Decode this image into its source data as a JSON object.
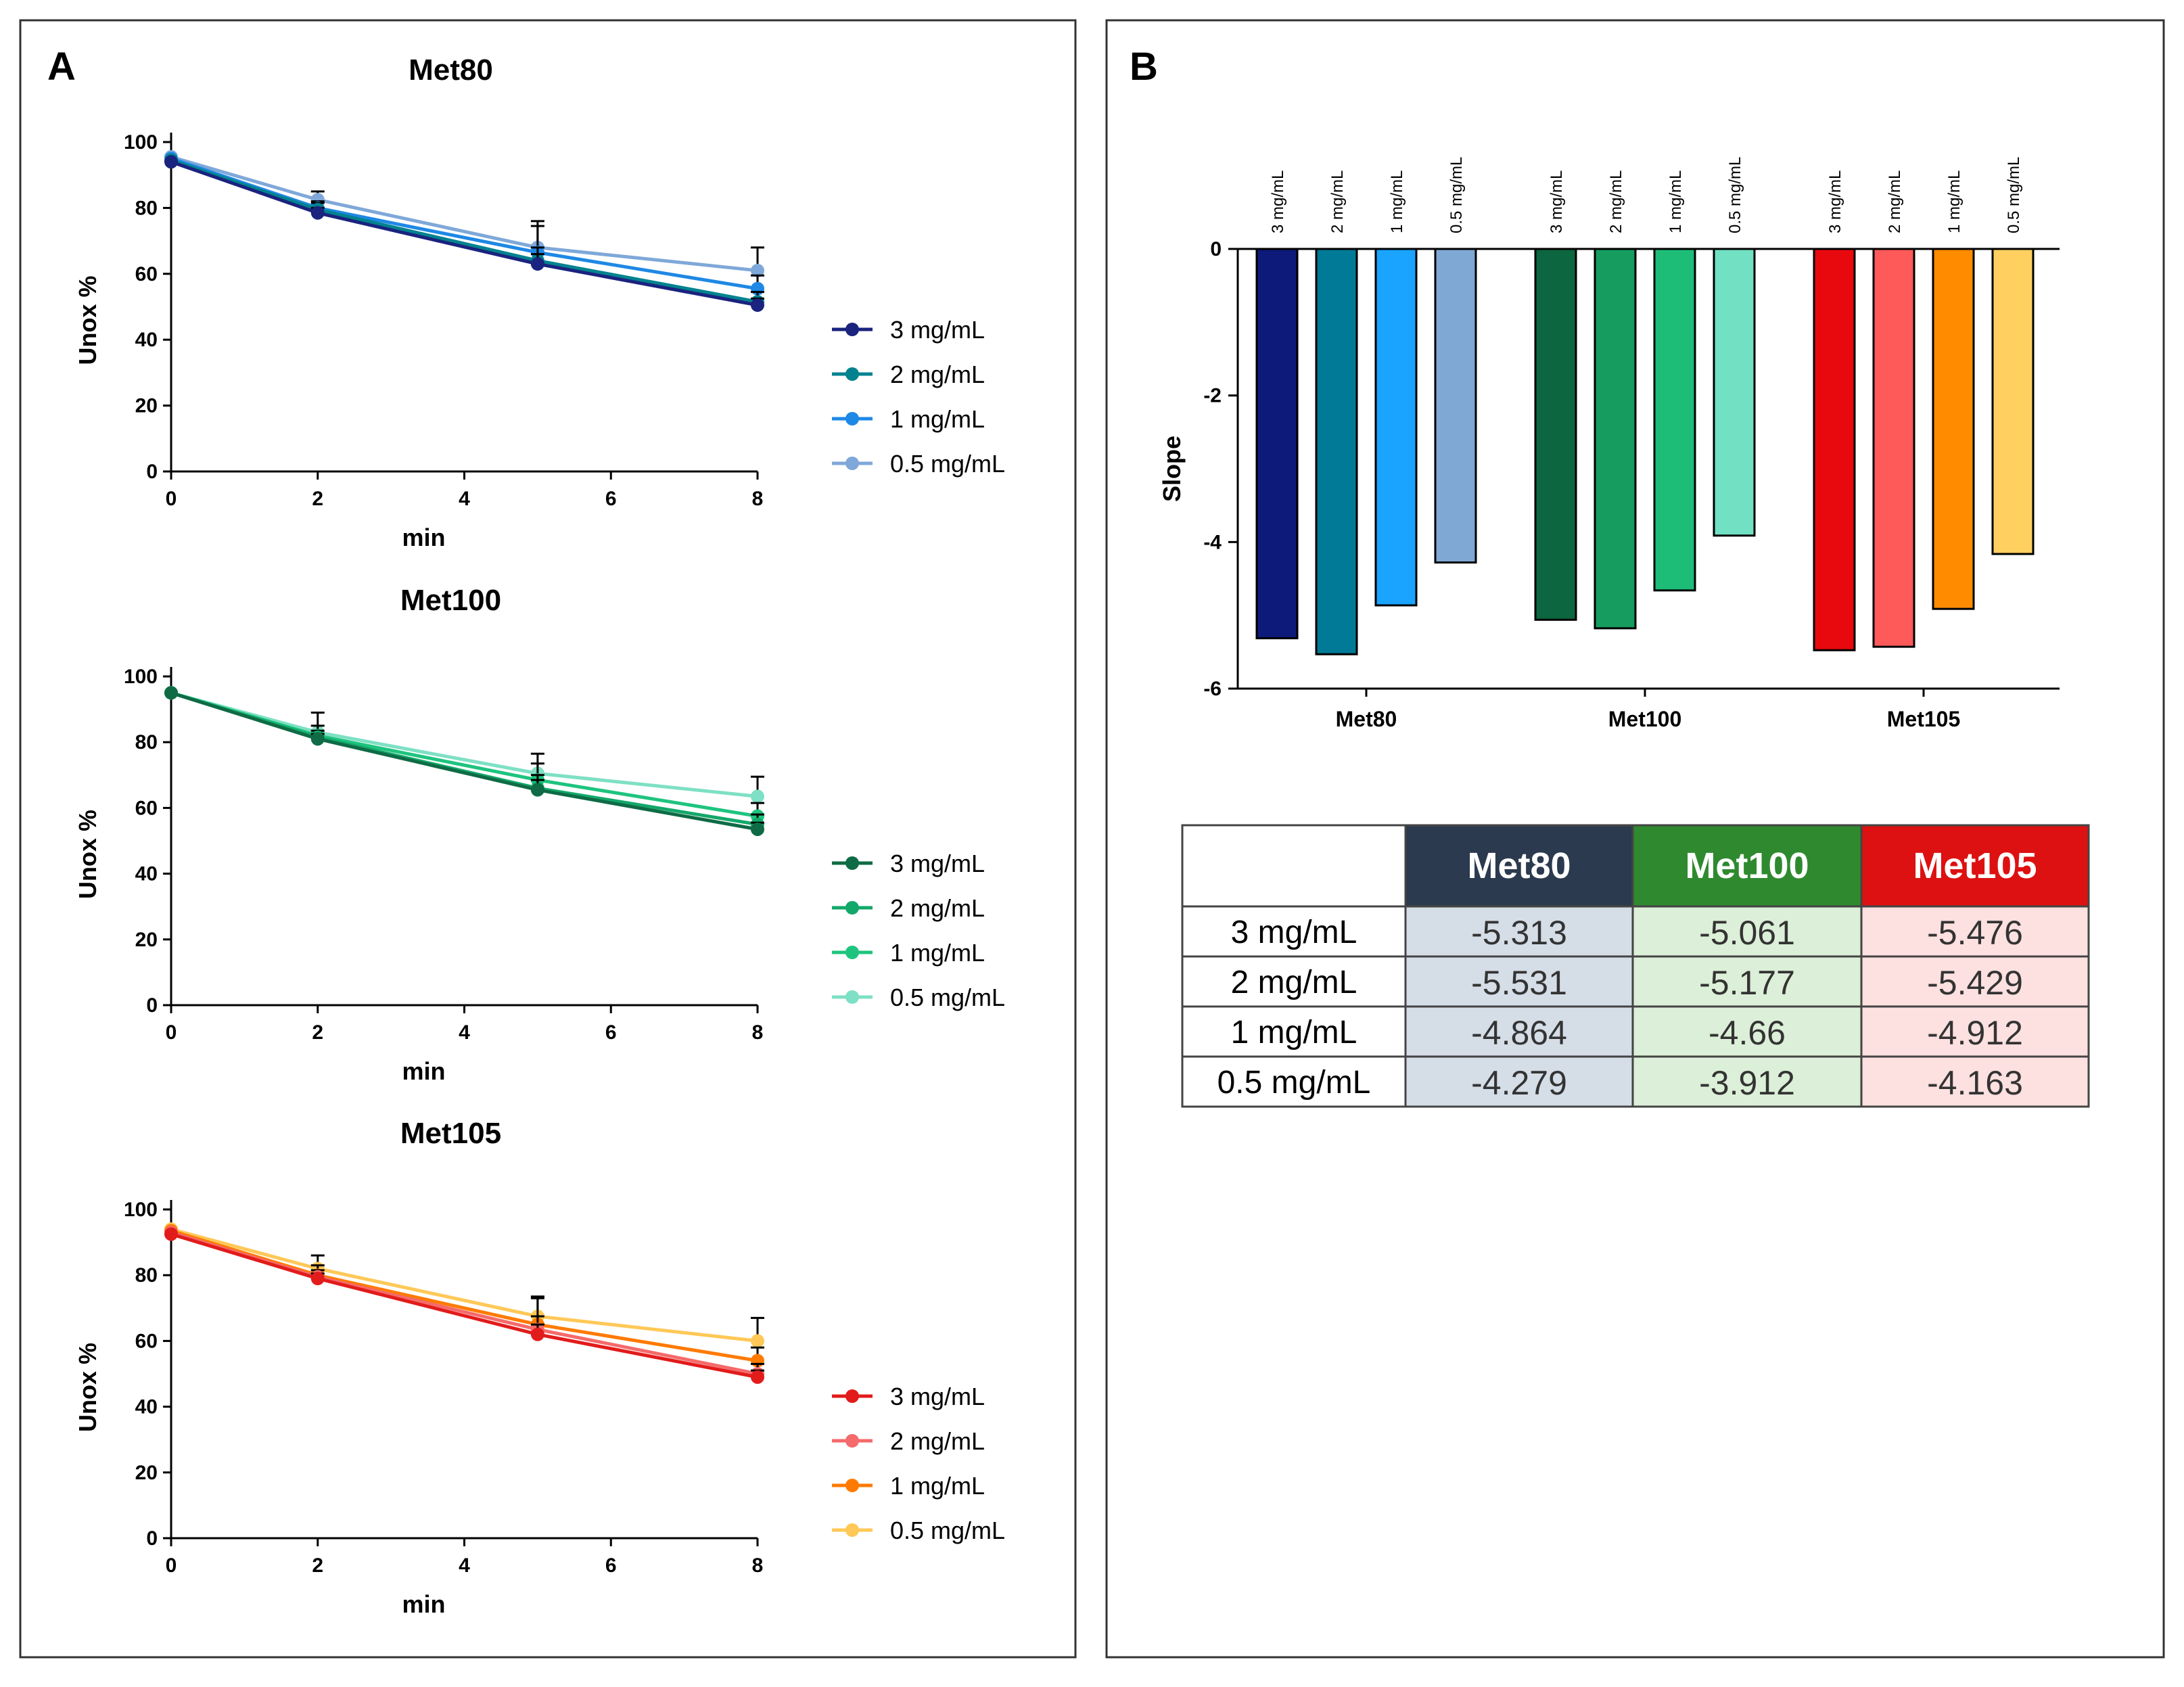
{
  "panel_a": {
    "letter": "A"
  },
  "panel_b": {
    "letter": "B"
  },
  "chart_data": [
    {
      "type": "line",
      "title": "Met80",
      "xlabel": "min",
      "ylabel": "Unox %",
      "xlim": [
        0,
        8
      ],
      "ylim": [
        0,
        100
      ],
      "xticks": [
        0,
        2,
        4,
        6,
        8
      ],
      "yticks": [
        0,
        20,
        40,
        60,
        80,
        100
      ],
      "x": [
        0,
        2,
        5,
        8
      ],
      "series": [
        {
          "name": "3 mg/mL",
          "color": "#1a237e",
          "values": [
            94,
            78.5,
            63,
            50.5
          ],
          "err": [
            0,
            1.5,
            3,
            2
          ]
        },
        {
          "name": "2 mg/mL",
          "color": "#00838f",
          "values": [
            94.5,
            79.5,
            64,
            51.5
          ],
          "err": [
            0,
            2,
            4,
            3
          ]
        },
        {
          "name": "1 mg/mL",
          "color": "#1e88e5",
          "values": [
            95,
            80,
            66.5,
            55.5
          ],
          "err": [
            0,
            2,
            8,
            4
          ]
        },
        {
          "name": "0.5 mg/mL",
          "color": "#7fa8d9",
          "values": [
            95.5,
            82.5,
            68,
            61
          ],
          "err": [
            0,
            2.5,
            8,
            7
          ]
        }
      ]
    },
    {
      "type": "line",
      "title": "Met100",
      "xlabel": "min",
      "ylabel": "Unox %",
      "xlim": [
        0,
        8
      ],
      "ylim": [
        0,
        100
      ],
      "xticks": [
        0,
        2,
        4,
        6,
        8
      ],
      "yticks": [
        0,
        20,
        40,
        60,
        80,
        100
      ],
      "x": [
        0,
        2,
        5,
        8
      ],
      "series": [
        {
          "name": "3 mg/mL",
          "color": "#0f6b45",
          "values": [
            95,
            81,
            65.5,
            53.5
          ],
          "err": [
            0,
            1.5,
            3,
            2
          ]
        },
        {
          "name": "2 mg/mL",
          "color": "#12a86a",
          "values": [
            95,
            81.5,
            66,
            55
          ],
          "err": [
            0,
            2,
            4,
            3
          ]
        },
        {
          "name": "1 mg/mL",
          "color": "#1ec47e",
          "values": [
            95,
            82,
            68.5,
            57.5
          ],
          "err": [
            0,
            3,
            5,
            4
          ]
        },
        {
          "name": "0.5 mg/mL",
          "color": "#7ee0c4",
          "values": [
            95,
            83,
            70.5,
            63.5
          ],
          "err": [
            0,
            6,
            6,
            6
          ]
        }
      ]
    },
    {
      "type": "line",
      "title": "Met105",
      "xlabel": "min",
      "ylabel": "Unox %",
      "xlim": [
        0,
        8
      ],
      "ylim": [
        0,
        100
      ],
      "xticks": [
        0,
        2,
        4,
        6,
        8
      ],
      "yticks": [
        0,
        20,
        40,
        60,
        80,
        100
      ],
      "x": [
        0,
        2,
        5,
        8
      ],
      "series": [
        {
          "name": "3 mg/mL",
          "color": "#e21b1b",
          "values": [
            92.5,
            79,
            62,
            49
          ],
          "err": [
            0,
            1.5,
            3,
            2
          ]
        },
        {
          "name": "2 mg/mL",
          "color": "#f56a6a",
          "values": [
            93,
            79.5,
            63.5,
            50
          ],
          "err": [
            0,
            2,
            4,
            3
          ]
        },
        {
          "name": "1 mg/mL",
          "color": "#ff7a00",
          "values": [
            93.5,
            80,
            65,
            54
          ],
          "err": [
            0,
            3,
            8,
            4
          ]
        },
        {
          "name": "0.5 mg/mL",
          "color": "#ffc857",
          "values": [
            94,
            82,
            67.5,
            60
          ],
          "err": [
            0,
            4,
            6,
            7
          ]
        }
      ]
    },
    {
      "type": "bar",
      "title": "",
      "ylabel": "Slope",
      "ylim": [
        -6,
        0
      ],
      "yticks": [
        0,
        -2,
        -4,
        -6
      ],
      "groups": [
        "Met80",
        "Met100",
        "Met105"
      ],
      "bar_labels": [
        "3 mg/mL",
        "2 mg/mL",
        "1 mg/mL",
        "0.5 mg/mL"
      ],
      "series": [
        {
          "group": "Met80",
          "colors": [
            "#0d1a7a",
            "#007a96",
            "#1aa3ff",
            "#7fa8d4"
          ],
          "values": [
            -5.313,
            -5.531,
            -4.864,
            -4.279
          ]
        },
        {
          "group": "Met100",
          "colors": [
            "#0c6640",
            "#159c5e",
            "#1dbd78",
            "#72e0c2"
          ],
          "values": [
            -5.061,
            -5.177,
            -4.66,
            -3.912
          ]
        },
        {
          "group": "Met105",
          "colors": [
            "#e8090f",
            "#ff5a5a",
            "#ff8c00",
            "#ffd060"
          ],
          "values": [
            -5.476,
            -5.429,
            -4.912,
            -4.163
          ]
        }
      ]
    },
    {
      "type": "table",
      "columns": [
        "",
        "Met80",
        "Met100",
        "Met105"
      ],
      "header_colors": [
        "#ffffff",
        "#2b3a4e",
        "#2f8a2f",
        "#dd1111"
      ],
      "cell_colors": [
        "#ffffff",
        "#d5dde7",
        "#dcefd8",
        "#fde0e0"
      ],
      "rows": [
        {
          "label": "3 mg/mL",
          "values": [
            "-5.313",
            "-5.061",
            "-5.476"
          ]
        },
        {
          "label": "2 mg/mL",
          "values": [
            "-5.531",
            "-5.177",
            "-5.429"
          ]
        },
        {
          "label": "1 mg/mL",
          "values": [
            "-4.864",
            "-4.66",
            "-4.912"
          ]
        },
        {
          "label": "0.5 mg/mL",
          "values": [
            "-4.279",
            "-3.912",
            "-4.163"
          ]
        }
      ]
    }
  ]
}
